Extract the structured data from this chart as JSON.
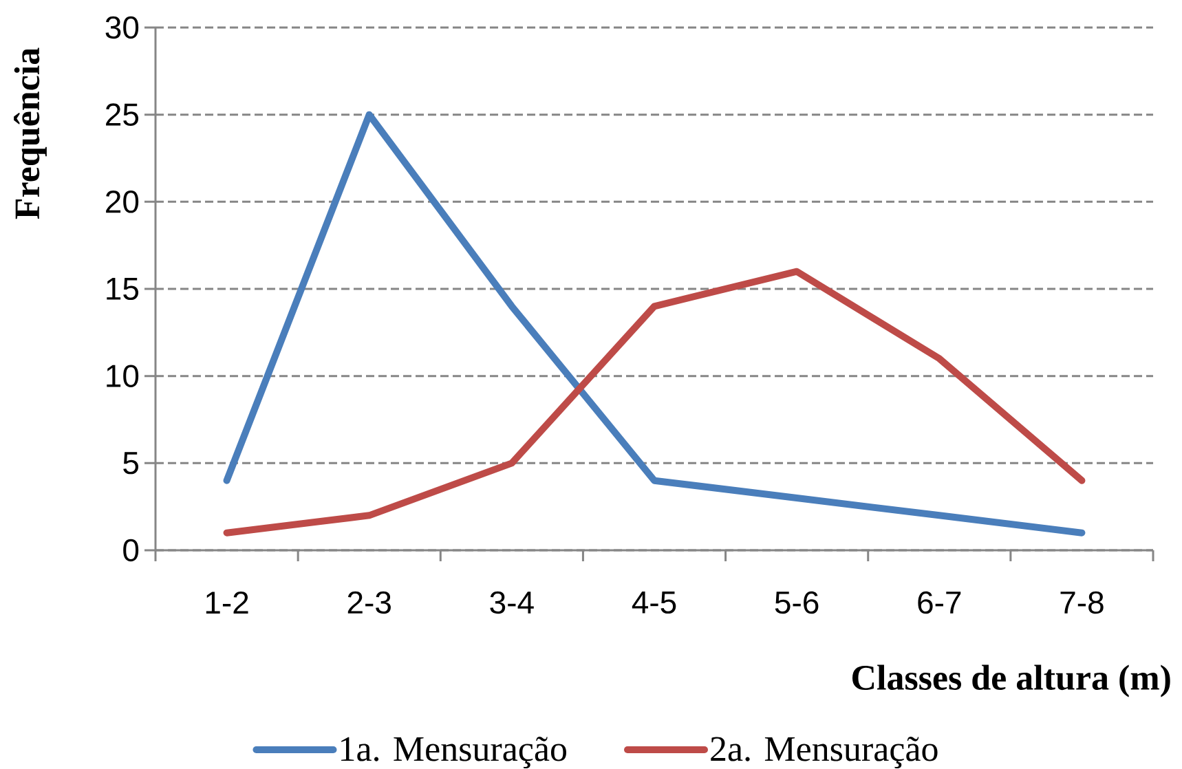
{
  "chart_data": {
    "type": "line",
    "xlabel": "Classes de altura (m)",
    "ylabel": "Frequência",
    "categories": [
      "1-2",
      "2-3",
      "3-4",
      "4-5",
      "5-6",
      "6-7",
      "7-8"
    ],
    "series": [
      {
        "name": "1a. Mensuração",
        "color": "#4a7ebb",
        "values": [
          4,
          25,
          14,
          4,
          3,
          2,
          1
        ]
      },
      {
        "name": "2a. Mensuração",
        "color": "#be4b48",
        "values": [
          1,
          2,
          5,
          14,
          16,
          11,
          4
        ]
      }
    ],
    "ylim": [
      0,
      30
    ],
    "yticks": [
      0,
      5,
      10,
      15,
      20,
      25,
      30
    ],
    "grid": "y",
    "legend": "bottom",
    "marker": "none",
    "line_style": "solid"
  }
}
